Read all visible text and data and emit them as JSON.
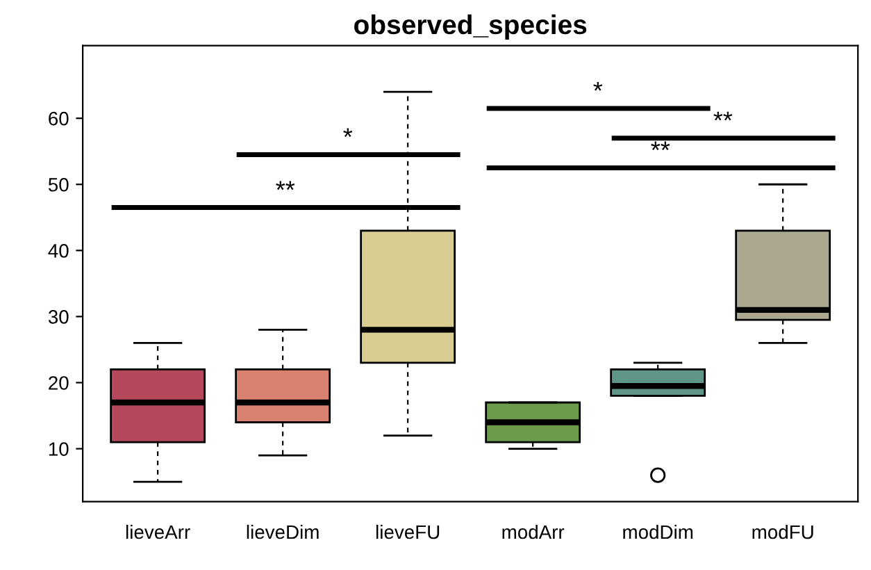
{
  "chart_data": {
    "type": "box",
    "title": "observed_species",
    "categories": [
      "lieveArr",
      "lieveDim",
      "lieveFU",
      "modArr",
      "modDim",
      "modFU"
    ],
    "colors": [
      "#b5495b",
      "#d8826f",
      "#d8cc92",
      "#6a9a4a",
      "#5f9488",
      "#aca890"
    ],
    "boxes": [
      {
        "low": 5,
        "q1": 11,
        "median": 17,
        "q3": 22,
        "high": 26
      },
      {
        "low": 9,
        "q1": 14,
        "median": 17,
        "q3": 22,
        "high": 28
      },
      {
        "low": 12,
        "q1": 23,
        "median": 28,
        "q3": 43,
        "high": 64
      },
      {
        "low": 10,
        "q1": 11,
        "median": 14,
        "q3": 17,
        "high": 17
      },
      {
        "low": 18,
        "q1": 18,
        "median": 19.5,
        "q3": 22,
        "high": 23,
        "outliers": [
          6
        ]
      },
      {
        "low": 26,
        "q1": 29.5,
        "median": 31,
        "q3": 43,
        "high": 50
      }
    ],
    "ylim": [
      2,
      71
    ],
    "yticks": [
      10,
      20,
      30,
      40,
      50,
      60
    ],
    "annotations": [
      "**",
      "*",
      "*",
      "**",
      "**"
    ],
    "grid": false,
    "legend": false
  }
}
